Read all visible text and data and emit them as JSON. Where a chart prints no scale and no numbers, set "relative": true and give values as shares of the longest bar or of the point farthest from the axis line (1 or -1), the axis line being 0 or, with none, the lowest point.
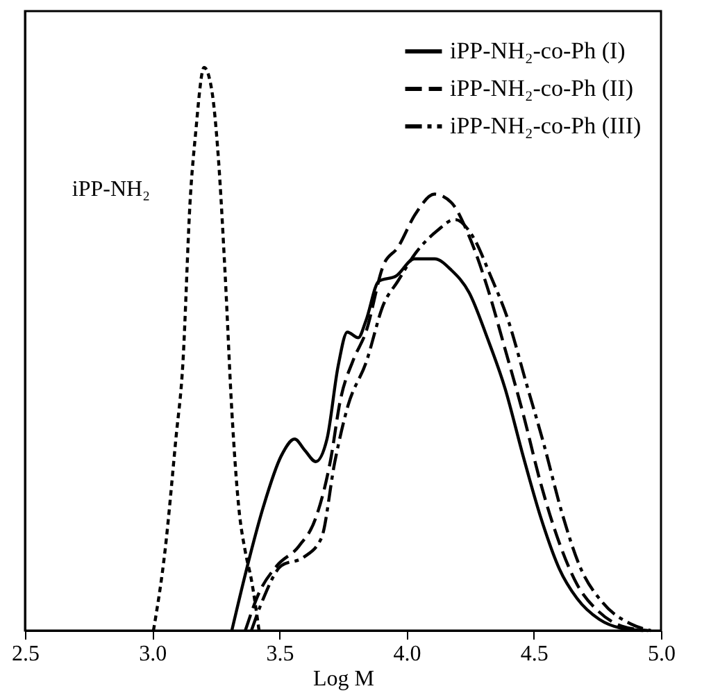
{
  "chart_data": {
    "type": "line",
    "xlabel": "Log M",
    "relative": true,
    "xlim": [
      2.5,
      5.0
    ],
    "xticks": [
      {
        "value": 2.5,
        "label": "2.5"
      },
      {
        "value": 3.0,
        "label": "3.0"
      },
      {
        "value": 3.5,
        "label": "3.5"
      },
      {
        "value": 4.0,
        "label": "4.0"
      },
      {
        "value": 4.5,
        "label": "4.5"
      },
      {
        "value": 5.0,
        "label": "5.0"
      }
    ],
    "tick_labels": "x",
    "legend": "top right",
    "grid": false,
    "series": [
      {
        "color": "#000000",
        "line_style": "dotted",
        "x": [
          3.005,
          3.05,
          3.093,
          3.12,
          3.15,
          3.17,
          3.204,
          3.234,
          3.26,
          3.287,
          3.313,
          3.34,
          3.366,
          3.39,
          3.42
        ],
        "values": [
          0,
          0.14,
          0.34,
          0.47,
          0.77,
          0.88,
          1.0,
          0.96,
          0.84,
          0.63,
          0.39,
          0.22,
          0.14,
          0.09,
          0
        ]
      },
      {
        "name": "iPP-NH₂-co-Ph (I)",
        "color": "#000000",
        "line_style": "solid",
        "x": [
          3.313,
          3.366,
          3.437,
          3.507,
          3.56,
          3.6,
          3.643,
          3.687,
          3.731,
          3.767,
          3.81,
          3.84,
          3.89,
          3.96,
          4.03,
          4.11,
          4.176,
          4.246,
          4.317,
          4.387,
          4.458,
          4.528,
          4.6,
          4.67,
          4.757,
          4.845,
          4.93
        ],
        "values": [
          0,
          0.1,
          0.22,
          0.31,
          0.34,
          0.32,
          0.3,
          0.34,
          0.47,
          0.53,
          0.52,
          0.55,
          0.62,
          0.63,
          0.66,
          0.66,
          0.64,
          0.6,
          0.52,
          0.43,
          0.31,
          0.2,
          0.11,
          0.057,
          0.02,
          0.004,
          0
        ]
      },
      {
        "name": "iPP-NH₂-co-Ph (II)",
        "color": "#000000",
        "line_style": "dashed",
        "x": [
          3.366,
          3.419,
          3.49,
          3.577,
          3.643,
          3.7,
          3.74,
          3.79,
          3.84,
          3.91,
          3.965,
          4.035,
          4.11,
          4.176,
          4.246,
          4.317,
          4.387,
          4.458,
          4.528,
          4.6,
          4.67,
          4.757,
          4.845,
          4.95
        ],
        "values": [
          0,
          0.066,
          0.115,
          0.15,
          0.2,
          0.3,
          0.41,
          0.48,
          0.53,
          0.65,
          0.68,
          0.74,
          0.775,
          0.76,
          0.7,
          0.61,
          0.5,
          0.385,
          0.26,
          0.156,
          0.082,
          0.033,
          0.008,
          0
        ]
      },
      {
        "name": "iPP-NH₂-co-Ph (III)",
        "color": "#000000",
        "line_style": "dashdot",
        "x": [
          3.39,
          3.437,
          3.507,
          3.595,
          3.665,
          3.718,
          3.77,
          3.84,
          3.91,
          3.965,
          4.035,
          4.12,
          4.19,
          4.26,
          4.33,
          4.4,
          4.47,
          4.54,
          4.61,
          4.68,
          4.77,
          4.88,
          4.96
        ],
        "values": [
          0,
          0.057,
          0.115,
          0.13,
          0.164,
          0.3,
          0.4,
          0.475,
          0.58,
          0.62,
          0.67,
          0.71,
          0.73,
          0.7,
          0.63,
          0.55,
          0.44,
          0.33,
          0.21,
          0.115,
          0.05,
          0.012,
          0
        ]
      }
    ],
    "annotations": [
      "iPP-NH₂"
    ]
  }
}
